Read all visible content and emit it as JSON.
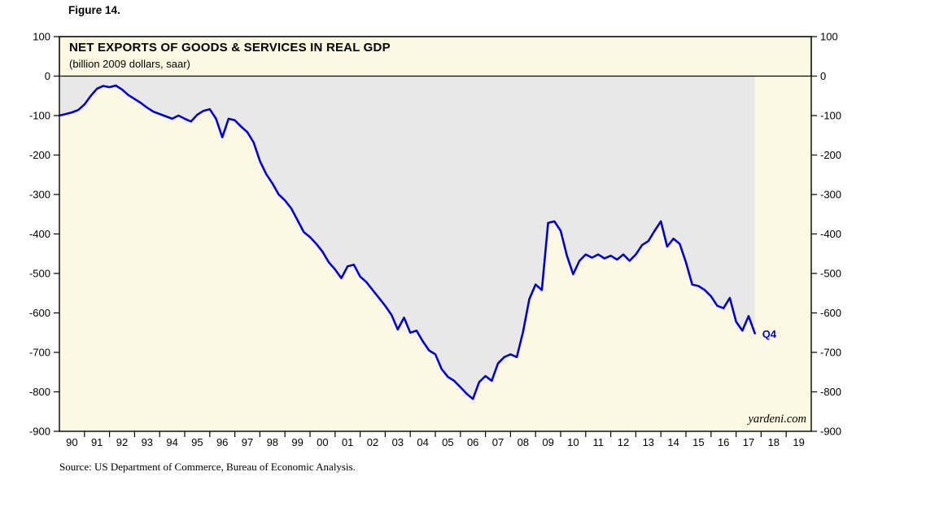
{
  "page": {
    "figure_label": "Figure 14.",
    "source": "Source: US Department of Commerce, Bureau of Economic Analysis."
  },
  "chart_data": {
    "type": "line",
    "title": "NET EXPORTS OF GOODS & SERVICES IN REAL GDP",
    "subtitle": "(billion 2009 dollars, saar)",
    "watermark": "yardeni.com",
    "end_label": "Q4",
    "series_name": "Net exports of goods & services in real GDP",
    "unit": "billion 2009 dollars, saar",
    "line_color": "#0000CC",
    "fill_above_color": "#E8E8E8",
    "background_color": "#FDF8E1",
    "x_range": [
      1990,
      2020
    ],
    "x_start": 1990,
    "x_step_years": 0.25,
    "x_tick_labels": [
      "90",
      "91",
      "92",
      "93",
      "94",
      "95",
      "96",
      "97",
      "98",
      "99",
      "00",
      "01",
      "02",
      "03",
      "04",
      "05",
      "06",
      "07",
      "08",
      "09",
      "10",
      "11",
      "12",
      "13",
      "14",
      "15",
      "16",
      "17",
      "18",
      "19"
    ],
    "ylim": [
      -900,
      100
    ],
    "y_ticks": [
      100,
      0,
      -100,
      -200,
      -300,
      -400,
      -500,
      -600,
      -700,
      -800,
      -900
    ],
    "legend_position": "none",
    "grid": false,
    "values": [
      -100,
      -96,
      -92,
      -86,
      -72,
      -50,
      -32,
      -25,
      -28,
      -24,
      -34,
      -48,
      -58,
      -68,
      -80,
      -90,
      -96,
      -102,
      -108,
      -100,
      -108,
      -115,
      -98,
      -88,
      -84,
      -108,
      -155,
      -108,
      -112,
      -128,
      -142,
      -168,
      -215,
      -248,
      -272,
      -300,
      -315,
      -335,
      -365,
      -395,
      -408,
      -425,
      -445,
      -472,
      -490,
      -512,
      -482,
      -478,
      -508,
      -522,
      -542,
      -562,
      -582,
      -605,
      -642,
      -612,
      -650,
      -645,
      -672,
      -695,
      -705,
      -742,
      -762,
      -772,
      -788,
      -805,
      -818,
      -775,
      -760,
      -772,
      -728,
      -712,
      -705,
      -712,
      -648,
      -565,
      -528,
      -542,
      -372,
      -368,
      -392,
      -455,
      -502,
      -468,
      -452,
      -460,
      -452,
      -462,
      -455,
      -465,
      -452,
      -468,
      -452,
      -428,
      -418,
      -392,
      -368,
      -432,
      -412,
      -425,
      -472,
      -528,
      -532,
      -542,
      -558,
      -582,
      -588,
      -562,
      -622,
      -645,
      -608,
      -652
    ]
  }
}
